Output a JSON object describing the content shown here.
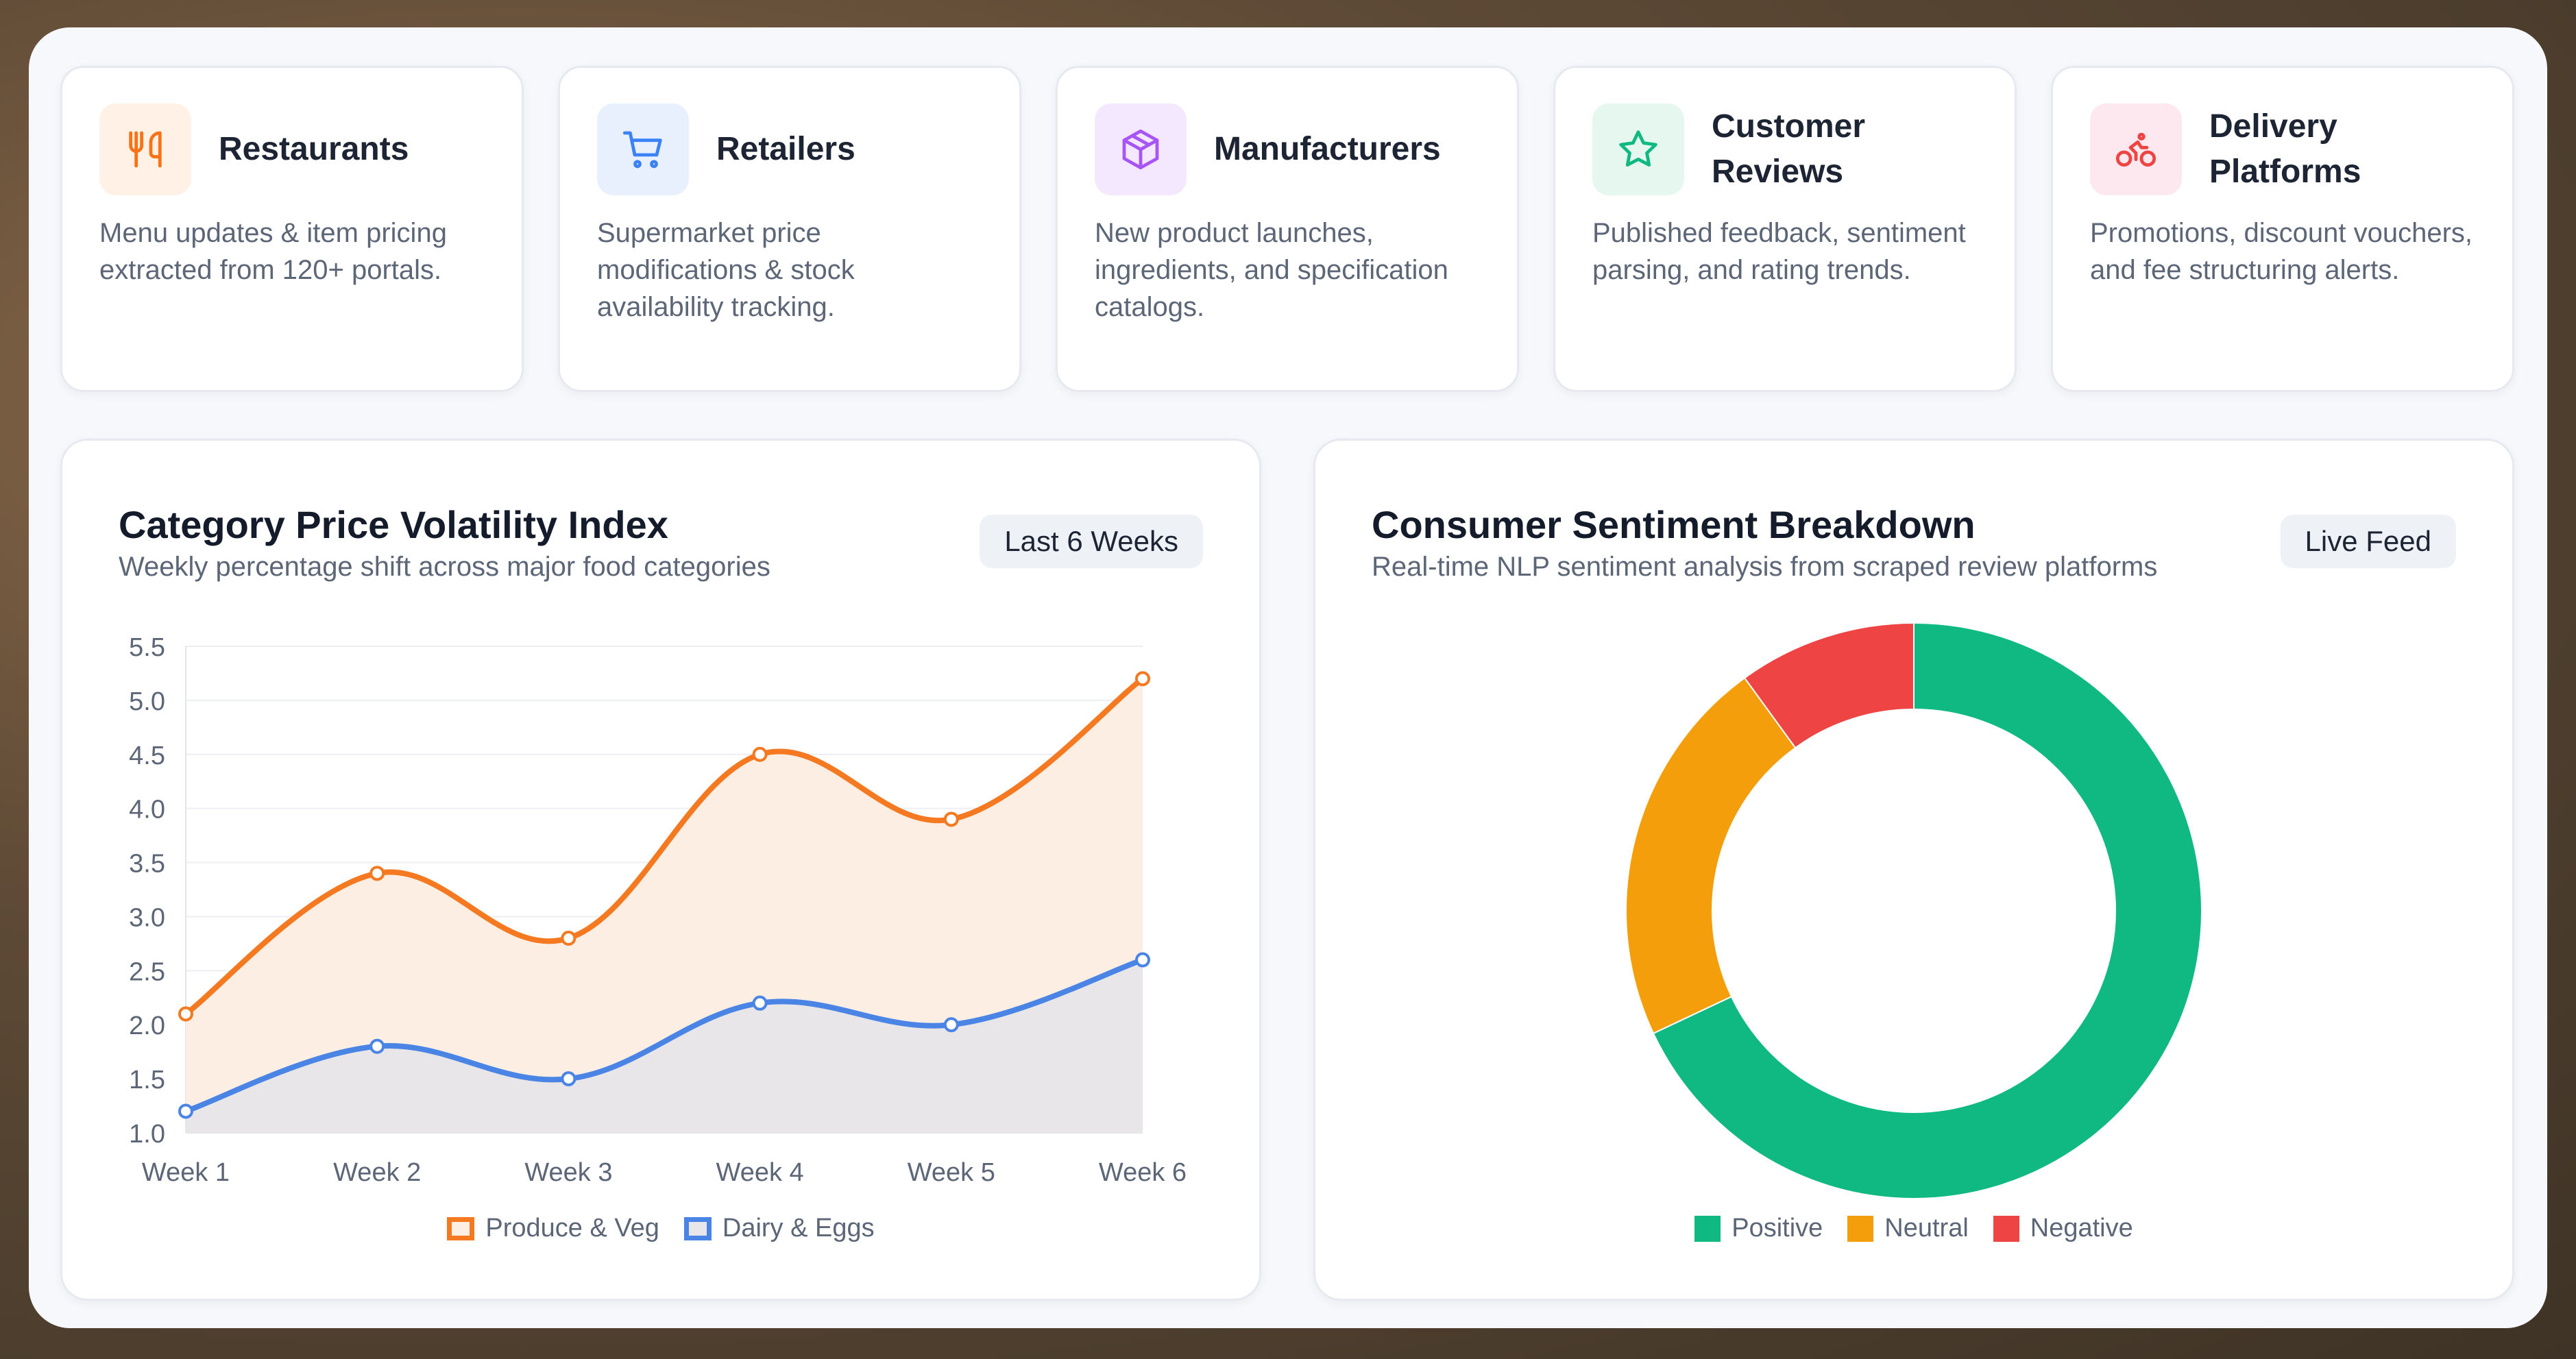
{
  "cards": [
    {
      "title": "Restaurants",
      "desc": "Menu updates & item pricing extracted from 120+ portals.",
      "icon": "fork-knife-icon",
      "icon_color": "#f97316",
      "icon_bg": "#fff1e6"
    },
    {
      "title": "Retailers",
      "desc": "Supermarket price modifications & stock availability tracking.",
      "icon": "cart-icon",
      "icon_color": "#3b82f6",
      "icon_bg": "#e8f0fe"
    },
    {
      "title": "Manufacturers",
      "desc": "New product launches, ingredients, and specification catalogs.",
      "icon": "box-icon",
      "icon_color": "#a855f7",
      "icon_bg": "#f3e8ff"
    },
    {
      "title": "Customer Reviews",
      "desc": "Published feedback, sentiment parsing, and rating trends.",
      "icon": "star-icon",
      "icon_color": "#10b981",
      "icon_bg": "#e6f7ef"
    },
    {
      "title": "Delivery Platforms",
      "desc": "Promotions, discount vouchers, and fee structuring alerts.",
      "icon": "bike-icon",
      "icon_color": "#ef4444",
      "icon_bg": "#fde8ef"
    }
  ],
  "volatility_panel": {
    "title": "Category Price Volatility Index",
    "subtitle": "Weekly percentage shift across major food categories",
    "badge": "Last 6 Weeks"
  },
  "sentiment_panel": {
    "title": "Consumer Sentiment Breakdown",
    "subtitle": "Real-time NLP sentiment analysis from scraped review platforms",
    "badge": "Live Feed"
  },
  "chart_data": [
    {
      "type": "line",
      "categories": [
        "Week 1",
        "Week 2",
        "Week 3",
        "Week 4",
        "Week 5",
        "Week 6"
      ],
      "series": [
        {
          "name": "Produce & Veg",
          "values": [
            2.1,
            3.4,
            2.8,
            4.5,
            3.9,
            5.2
          ],
          "color": "#f47920",
          "fill": "#fdeee4"
        },
        {
          "name": "Dairy & Eggs",
          "values": [
            1.2,
            1.8,
            1.5,
            2.2,
            2.0,
            2.6
          ],
          "color": "#4a85e6",
          "fill": "#e8e6e8"
        }
      ],
      "yticks": [
        "1.0",
        "1.5",
        "2.0",
        "2.5",
        "3.0",
        "3.5",
        "4.0",
        "4.5",
        "5.0",
        "5.5"
      ],
      "ylim": [
        1.0,
        5.5
      ],
      "grid": true,
      "legend": "bottom"
    },
    {
      "type": "pie",
      "donut": true,
      "labels": [
        "Positive",
        "Neutral",
        "Negative"
      ],
      "values": [
        68,
        22,
        10
      ],
      "colors": [
        "#10b981",
        "#f59e0b",
        "#ef4444"
      ],
      "legend": "bottom"
    }
  ]
}
